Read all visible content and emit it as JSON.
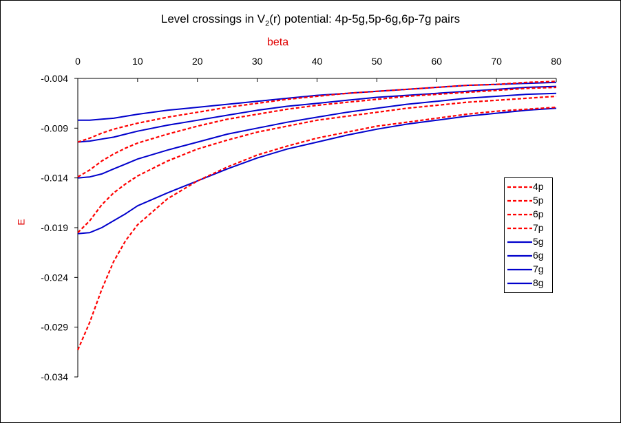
{
  "title": {
    "prefix": "Level crossings in V",
    "sub": "2",
    "suffix": "(r) potential: 4p-5g,5p-6g,6p-7g pairs"
  },
  "chart_data": {
    "type": "line",
    "xlabel": "beta",
    "ylabel": "E",
    "xlim": [
      0,
      80
    ],
    "ylim": [
      -0.034,
      -0.004
    ],
    "x_ticks": [
      0,
      10,
      20,
      30,
      40,
      50,
      60,
      70,
      80
    ],
    "y_ticks": [
      -0.004,
      -0.009,
      -0.014,
      -0.019,
      -0.024,
      -0.029,
      -0.034
    ],
    "y_tick_labels": [
      "-0.004",
      "-0.009",
      "-0.014",
      "-0.019",
      "-0.024",
      "-0.029",
      "-0.034"
    ],
    "x_axis_position": "top",
    "legend_position": "right",
    "grid": false,
    "x": [
      0,
      2,
      4,
      6,
      8,
      10,
      15,
      20,
      25,
      30,
      35,
      40,
      45,
      50,
      55,
      60,
      65,
      70,
      75,
      80
    ],
    "series": [
      {
        "name": "4p",
        "style": "dashed",
        "color": "#ff0000",
        "values": [
          -0.0313,
          -0.0285,
          -0.0252,
          -0.0224,
          -0.0203,
          -0.0187,
          -0.0161,
          -0.0143,
          -0.0129,
          -0.0117,
          -0.0108,
          -0.01,
          -0.0094,
          -0.0088,
          -0.0084,
          -0.008,
          -0.0076,
          -0.0073,
          -0.0071,
          -0.0069
        ]
      },
      {
        "name": "5p",
        "style": "dashed",
        "color": "#ff0000",
        "values": [
          -0.0195,
          -0.0183,
          -0.0167,
          -0.0155,
          -0.0146,
          -0.0138,
          -0.0123,
          -0.0111,
          -0.0102,
          -0.0094,
          -0.0088,
          -0.0082,
          -0.0078,
          -0.0074,
          -0.007,
          -0.0067,
          -0.0064,
          -0.0062,
          -0.006,
          -0.0058
        ]
      },
      {
        "name": "6p",
        "style": "dashed",
        "color": "#ff0000",
        "values": [
          -0.0139,
          -0.0132,
          -0.0123,
          -0.0116,
          -0.011,
          -0.0105,
          -0.0096,
          -0.0088,
          -0.0081,
          -0.0076,
          -0.0071,
          -0.0067,
          -0.0064,
          -0.0061,
          -0.0058,
          -0.0056,
          -0.0054,
          -0.0052,
          -0.005,
          -0.0049
        ]
      },
      {
        "name": "7p",
        "style": "dashed",
        "color": "#ff0000",
        "values": [
          -0.0104,
          -0.01,
          -0.0095,
          -0.0091,
          -0.0088,
          -0.0085,
          -0.0079,
          -0.0074,
          -0.0069,
          -0.0065,
          -0.0061,
          -0.0058,
          -0.0055,
          -0.0053,
          -0.0051,
          -0.0049,
          -0.0047,
          -0.0046,
          -0.0044,
          -0.0043
        ]
      },
      {
        "name": "5g",
        "style": "solid",
        "color": "#0000cc",
        "values": [
          -0.0196,
          -0.0195,
          -0.019,
          -0.0183,
          -0.0176,
          -0.0168,
          -0.0155,
          -0.0143,
          -0.0131,
          -0.012,
          -0.0111,
          -0.0104,
          -0.0097,
          -0.0091,
          -0.0086,
          -0.0082,
          -0.0078,
          -0.0075,
          -0.0072,
          -0.007
        ]
      },
      {
        "name": "6g",
        "style": "solid",
        "color": "#0000cc",
        "values": [
          -0.014,
          -0.0139,
          -0.0136,
          -0.0131,
          -0.0126,
          -0.0121,
          -0.0112,
          -0.0104,
          -0.0096,
          -0.009,
          -0.0084,
          -0.0079,
          -0.0074,
          -0.007,
          -0.0066,
          -0.0063,
          -0.006,
          -0.0058,
          -0.0056,
          -0.0055
        ]
      },
      {
        "name": "7g",
        "style": "solid",
        "color": "#0000cc",
        "values": [
          -0.0104,
          -0.0103,
          -0.0101,
          -0.0099,
          -0.0096,
          -0.0093,
          -0.0087,
          -0.0082,
          -0.0077,
          -0.0072,
          -0.0068,
          -0.0065,
          -0.0062,
          -0.0059,
          -0.0057,
          -0.0055,
          -0.0053,
          -0.0051,
          -0.0049,
          -0.0048
        ]
      },
      {
        "name": "8g",
        "style": "solid",
        "color": "#0000cc",
        "values": [
          -0.0082,
          -0.0082,
          -0.0081,
          -0.008,
          -0.0078,
          -0.0076,
          -0.0072,
          -0.0069,
          -0.0066,
          -0.0063,
          -0.006,
          -0.0057,
          -0.0055,
          -0.0053,
          -0.0051,
          -0.0049,
          -0.0047,
          -0.0046,
          -0.0045,
          -0.0044
        ]
      }
    ]
  }
}
